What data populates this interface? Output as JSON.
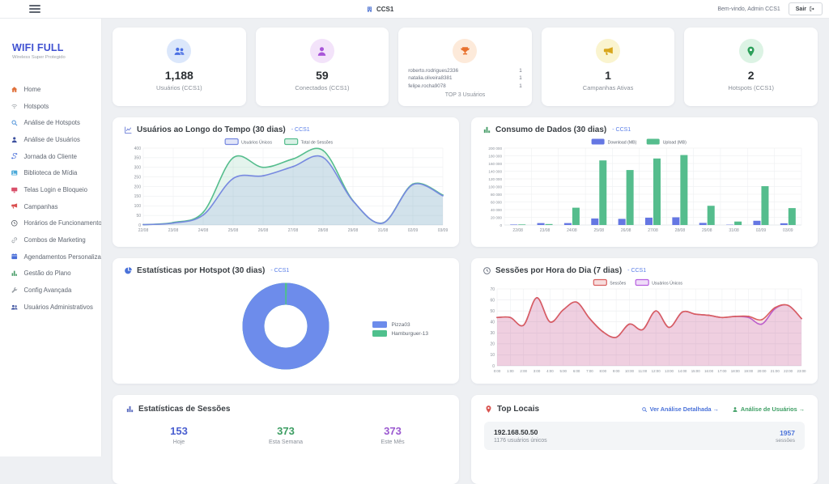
{
  "header": {
    "title": "CCS1",
    "icon": "building-icon",
    "welcome": "Bem-vindo, Admin CCS1",
    "logout_label": "Sair",
    "logout_icon": "logout-icon"
  },
  "sidebar": {
    "brand": "WIFI FULL",
    "tagline": "Wireless Super Protegido",
    "brand_color": "#3f51d1",
    "items": [
      {
        "label": "Home",
        "icon": "home-icon",
        "color": "#e0703a"
      },
      {
        "label": "Hotspots",
        "icon": "wifi-icon",
        "color": "#9aa0a6"
      },
      {
        "label": "Análise de Hotspots",
        "icon": "magnifier-icon",
        "color": "#4a90d9"
      },
      {
        "label": "Análise de Usuários",
        "icon": "person-icon",
        "color": "#3b4f9e"
      },
      {
        "label": "Jornada do Cliente",
        "icon": "route-icon",
        "color": "#4a6fd9"
      },
      {
        "label": "Biblioteca de Mídia",
        "icon": "photos-icon",
        "color": "#4aa9d9"
      },
      {
        "label": "Telas Login e Bloqueio",
        "icon": "monitor-icon",
        "color": "#d94f6a"
      },
      {
        "label": "Campanhas",
        "icon": "megaphone-icon",
        "color": "#d94f4f"
      },
      {
        "label": "Horários de Funcionamento",
        "icon": "clock-icon",
        "color": "#555b63"
      },
      {
        "label": "Combos de Marketing",
        "icon": "link-icon",
        "color": "#9aa0a6"
      },
      {
        "label": "Agendamentos Personalizados",
        "icon": "calendar-icon",
        "color": "#4a6fd9"
      },
      {
        "label": "Gestão do Plano",
        "icon": "bar-chart-icon",
        "color": "#4a9e6a"
      },
      {
        "label": "Config Avançada",
        "icon": "wrench-icon",
        "color": "#9aa0a6"
      },
      {
        "label": "Usuários Administrativos",
        "icon": "users-icon",
        "color": "#3b4f9e"
      }
    ]
  },
  "stats_cards": [
    {
      "type": "value",
      "icon": "users-icon",
      "icon_color": "#4a6fe3",
      "icon_bg": "#dbe7fb",
      "value": "1,188",
      "label": "Usuários (CCS1)"
    },
    {
      "type": "value",
      "icon": "person-icon",
      "icon_color": "#a855d8",
      "icon_bg": "#f3e3fa",
      "value": "59",
      "label": "Conectados (CCS1)"
    },
    {
      "type": "list",
      "icon": "trophy-icon",
      "icon_color": "#e8712e",
      "icon_bg": "#fdeada",
      "label": "TOP 3 Usuários",
      "items": [
        {
          "name": "roberto.rodrigues2336",
          "value": "1"
        },
        {
          "name": "natalia.oliveira8381",
          "value": "1"
        },
        {
          "name": "felipe.rocha9078",
          "value": "1"
        }
      ]
    },
    {
      "type": "value",
      "icon": "megaphone-icon",
      "icon_color": "#d8a61c",
      "icon_bg": "#faf4cf",
      "value": "1",
      "label": "Campanhas Ativas"
    },
    {
      "type": "value",
      "icon": "pin-icon",
      "icon_color": "#2da05a",
      "icon_bg": "#dcf3e4",
      "value": "2",
      "label": "Hotspots (CCS1)"
    }
  ],
  "chart_data": [
    {
      "type": "line",
      "title": "Usuários ao Longo do Tempo (30 dias)",
      "scope": "- CCS1",
      "icon": "line-chart-icon",
      "icon_color": "#6c7fd8",
      "categories": [
        "22/08",
        "23/08",
        "24/08",
        "25/08",
        "26/08",
        "27/08",
        "28/08",
        "29/08",
        "31/08",
        "02/09",
        "03/09"
      ],
      "series": [
        {
          "name": "Usuários Únicos",
          "color": "#7789e0",
          "values": [
            2,
            10,
            52,
            242,
            256,
            304,
            352,
            125,
            10,
            210,
            152
          ]
        },
        {
          "name": "Total de Sessões",
          "color": "#55bd8d",
          "values": [
            2,
            13,
            66,
            350,
            300,
            344,
            388,
            127,
            11,
            213,
            156
          ]
        }
      ],
      "ylim": [
        0,
        400
      ],
      "ytick": 50,
      "grid": true,
      "legend_position": "top",
      "ml": 24,
      "xfs": 5
    },
    {
      "type": "bar",
      "title": "Consumo de Dados (30 dias)",
      "scope": "- CCS1",
      "icon": "bar-chart-icon",
      "icon_color": "#4a9e6a",
      "categories": [
        "22/08",
        "23/08",
        "24/08",
        "25/08",
        "26/08",
        "27/08",
        "28/08",
        "29/08",
        "31/08",
        "02/09",
        "03/09"
      ],
      "series": [
        {
          "name": "Download (MB)",
          "color": "#6577e3",
          "values": [
            1200,
            5000,
            5000,
            17000,
            16000,
            19000,
            20000,
            5500,
            800,
            11000,
            4500
          ]
        },
        {
          "name": "Upload (MB)",
          "color": "#55bd8d",
          "values": [
            1500,
            2500,
            45000,
            168000,
            143000,
            173000,
            182000,
            50000,
            9000,
            101000,
            44000
          ]
        }
      ],
      "ylim": [
        0,
        200000
      ],
      "ytick": 20000,
      "yformat": "k",
      "grid": true,
      "legend_position": "top",
      "ml": 27,
      "xfs": 5,
      "yfs": 4.6
    },
    {
      "type": "donut",
      "title": "Estatísticas por Hotspot (30 dias)",
      "scope": "- CCS1",
      "icon": "pie-icon",
      "icon_color": "#4a72d9",
      "legend_position": "right",
      "slices": [
        {
          "label": "Pizza03",
          "value": 99,
          "color": "#6d8ceb"
        },
        {
          "label": "Hamburguer-13",
          "value": 1,
          "color": "#4fc08d"
        }
      ]
    },
    {
      "type": "line",
      "title": "Sessões por Hora do Dia (7 dias)",
      "scope": "- CCS1",
      "icon": "clock-icon",
      "icon_color": "#6b7280",
      "categories": [
        "0:00",
        "1:00",
        "2:00",
        "3:00",
        "4:00",
        "5:00",
        "6:00",
        "7:00",
        "8:00",
        "9:00",
        "10:00",
        "11:00",
        "12:00",
        "13:00",
        "14:00",
        "15:00",
        "16:00",
        "17:00",
        "18:00",
        "19:00",
        "20:00",
        "21:00",
        "22:00",
        "23:00"
      ],
      "series": [
        {
          "name": "Sessões",
          "color": "#d95f5f",
          "values": [
            44,
            44,
            37,
            62,
            40,
            51,
            58,
            43,
            31,
            26,
            38,
            33,
            50,
            35,
            49,
            47,
            46,
            44,
            45,
            45,
            42,
            53,
            55,
            43
          ]
        },
        {
          "name": "Usuários Únicos",
          "color": "#b75fe0",
          "values": [
            44,
            44,
            37,
            62,
            40,
            51,
            58,
            43,
            31,
            26,
            38,
            33,
            50,
            35,
            49,
            47,
            46,
            44,
            45,
            44,
            38,
            52,
            55,
            43
          ]
        }
      ],
      "ylim": [
        0,
        70
      ],
      "ytick": 10,
      "grid": true,
      "legend_position": "top",
      "ml": 18,
      "xfs": 4.4
    }
  ],
  "sessions_summary": {
    "title": "Estatísticas de Sessões",
    "icon": "bar-chart-icon",
    "icon_color": "#5b6cc0",
    "stats": [
      {
        "value": "153",
        "label": "Hoje",
        "color": "#4a5fd0"
      },
      {
        "value": "373",
        "label": "Esta Semana",
        "color": "#3d9e63"
      },
      {
        "value": "373",
        "label": "Este Mês",
        "color": "#9b59d0"
      }
    ]
  },
  "top_locais": {
    "title": "Top Locais",
    "icon": "pin-icon",
    "icon_color": "#d9534f",
    "links": [
      {
        "label": "Ver Análise Detalhada →",
        "color": "#4a72d9",
        "icon": "magnifier-icon"
      },
      {
        "label": "Análise de Usuários →",
        "color": "#3d9e63",
        "icon": "person-icon"
      }
    ],
    "rows": [
      {
        "ip": "192.168.50.50",
        "sub": "1176 usuários únicos",
        "value": "1957",
        "value_label": "sessões"
      }
    ]
  }
}
